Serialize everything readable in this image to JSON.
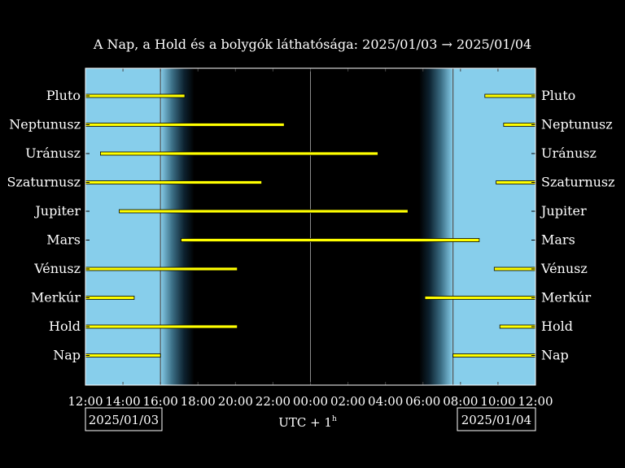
{
  "chart_data": {
    "type": "bar",
    "title": "A Nap, a Hold és a bolygók láthatósága: 2025/01/03 → 2025/01/04",
    "xlabel_main": "UTC + 1",
    "xlabel_sup": "h",
    "x_range_hours": [
      12,
      36
    ],
    "x_ticks": [
      "12:00",
      "14:00",
      "16:00",
      "18:00",
      "20:00",
      "22:00",
      "00:00",
      "02:00",
      "04:00",
      "06:00",
      "08:00",
      "10:00",
      "12:00"
    ],
    "date_left": "2025/01/03",
    "date_right": "2025/01/04",
    "sunset_hour": 16.0,
    "sunrise_hour": 31.6,
    "midnight_hour": 24.0,
    "twilight_length_hours": 1.8,
    "colors": {
      "day": "#87ceeb",
      "night": "#000000",
      "bar": "#ffff00",
      "axis": "#ffffff"
    },
    "bodies": [
      {
        "name": "Pluto",
        "intervals": [
          [
            12.0,
            17.3
          ],
          [
            33.3,
            36.0
          ]
        ]
      },
      {
        "name": "Neptunusz",
        "intervals": [
          [
            12.0,
            22.6
          ],
          [
            34.3,
            36.0
          ]
        ]
      },
      {
        "name": "Uránusz",
        "intervals": [
          [
            12.8,
            27.6
          ]
        ]
      },
      {
        "name": "Szaturnusz",
        "intervals": [
          [
            12.0,
            21.4
          ],
          [
            33.9,
            36.0
          ]
        ]
      },
      {
        "name": "Jupiter",
        "intervals": [
          [
            13.8,
            29.2
          ]
        ]
      },
      {
        "name": "Mars",
        "intervals": [
          [
            17.1,
            33.0
          ]
        ]
      },
      {
        "name": "Vénusz",
        "intervals": [
          [
            12.0,
            20.1
          ],
          [
            33.8,
            36.0
          ]
        ]
      },
      {
        "name": "Merkúr",
        "intervals": [
          [
            12.0,
            14.6
          ],
          [
            30.1,
            36.0
          ]
        ]
      },
      {
        "name": "Hold",
        "intervals": [
          [
            12.0,
            20.1
          ],
          [
            34.1,
            36.0
          ]
        ]
      },
      {
        "name": "Nap",
        "intervals": [
          [
            12.0,
            16.0
          ],
          [
            31.6,
            36.0
          ]
        ]
      }
    ]
  }
}
